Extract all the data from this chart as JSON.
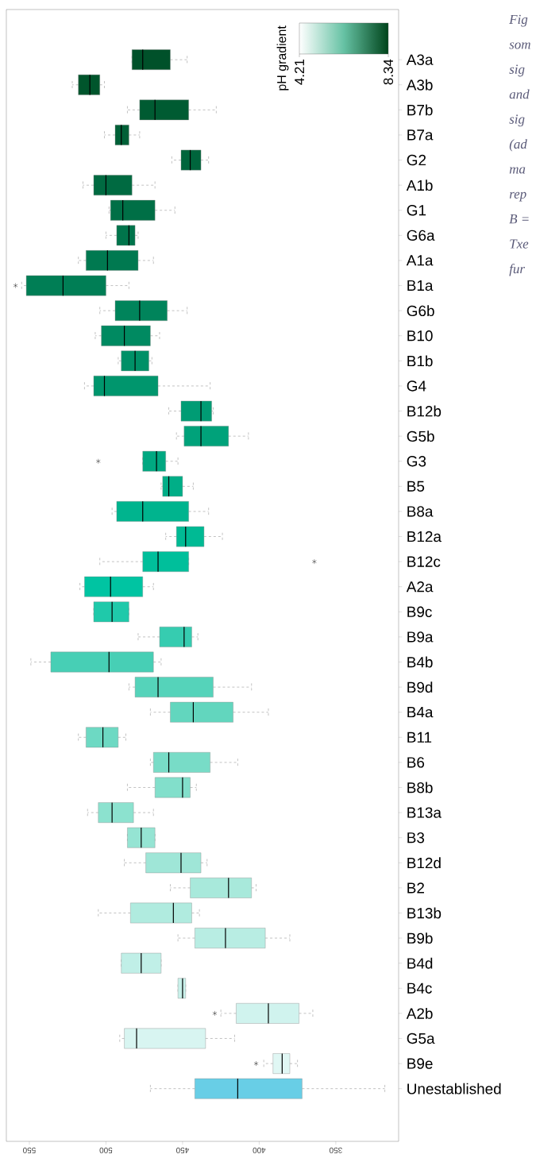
{
  "chart_data": {
    "type": "box",
    "orientation": "horizontal",
    "categories": [
      "A3a",
      "A3b",
      "B7b",
      "B7a",
      "G2",
      "A1b",
      "G1",
      "G6a",
      "A1a",
      "B1a",
      "G6b",
      "B10",
      "B1b",
      "G4",
      "B12b",
      "G5b",
      "G3",
      "B5",
      "B8a",
      "B12a",
      "B12c",
      "A2a",
      "B9c",
      "B9a",
      "B4b",
      "B9d",
      "B4a",
      "B11",
      "B6",
      "B8b",
      "B13a",
      "B3",
      "B12d",
      "B2",
      "B13b",
      "B9b",
      "B4d",
      "B4c",
      "A2b",
      "G5a",
      "B9e",
      "Unestablished"
    ],
    "boxes": [
      {
        "low": 447,
        "q1": 458,
        "median": 476,
        "q3": 483,
        "high": 483
      },
      {
        "low": 501,
        "q1": 504,
        "median": 510.5,
        "q3": 518,
        "high": 522
      },
      {
        "low": 428,
        "q1": 446,
        "median": 468,
        "q3": 478,
        "high": 486
      },
      {
        "low": 478,
        "q1": 485,
        "median": 490,
        "q3": 494,
        "high": 501
      },
      {
        "low": 433,
        "q1": 438,
        "median": 445,
        "q3": 451,
        "high": 457
      },
      {
        "low": 468,
        "q1": 483,
        "median": 500,
        "q3": 508,
        "high": 515
      },
      {
        "low": 455,
        "q1": 468,
        "median": 489,
        "q3": 497,
        "high": 498
      },
      {
        "low": 479,
        "q1": 481,
        "median": 485,
        "q3": 493,
        "high": 500
      },
      {
        "low": 469,
        "q1": 479,
        "median": 499,
        "q3": 513,
        "high": 518
      },
      {
        "low": 485,
        "q1": 500,
        "median": 528,
        "q3": 552,
        "high": 555,
        "outliers": [
          559
        ]
      },
      {
        "low": 447,
        "q1": 460,
        "median": 478,
        "q3": 494,
        "high": 504
      },
      {
        "low": 465,
        "q1": 471,
        "median": 488,
        "q3": 503,
        "high": 507
      },
      {
        "low": 470,
        "q1": 472,
        "median": 481,
        "q3": 490,
        "high": 492
      },
      {
        "low": 432,
        "q1": 466,
        "median": 501,
        "q3": 508,
        "high": 514
      },
      {
        "low": 430,
        "q1": 431,
        "median": 438,
        "q3": 451,
        "high": 459
      },
      {
        "low": 407,
        "q1": 420,
        "median": 438,
        "q3": 449,
        "high": 454
      },
      {
        "low": 453,
        "q1": 461,
        "median": 467,
        "q3": 476,
        "high": 476,
        "outliers": [
          505
        ]
      },
      {
        "low": 443,
        "q1": 450,
        "median": 459,
        "q3": 463,
        "high": 464
      },
      {
        "low": 433,
        "q1": 446,
        "median": 476,
        "q3": 493,
        "high": 496
      },
      {
        "low": 424,
        "q1": 436,
        "median": 448,
        "q3": 454,
        "high": 461
      },
      {
        "low": 446,
        "q1": 446,
        "median": 466,
        "q3": 476,
        "high": 504,
        "outliers": [
          364
        ]
      },
      {
        "low": 469,
        "q1": 476,
        "median": 497,
        "q3": 514,
        "high": 517
      },
      {
        "low": 485,
        "q1": 485,
        "median": 496,
        "q3": 508,
        "high": 508
      },
      {
        "low": 440,
        "q1": 444,
        "median": 449,
        "q3": 465,
        "high": 479
      },
      {
        "low": 464,
        "q1": 469,
        "median": 498,
        "q3": 536,
        "high": 549
      },
      {
        "low": 405,
        "q1": 430,
        "median": 466,
        "q3": 481,
        "high": 485
      },
      {
        "low": 394,
        "q1": 417,
        "median": 443,
        "q3": 458,
        "high": 471
      },
      {
        "low": 487,
        "q1": 492,
        "median": 502,
        "q3": 513,
        "high": 518
      },
      {
        "low": 414,
        "q1": 432,
        "median": 459,
        "q3": 469,
        "high": 471
      },
      {
        "low": 441,
        "q1": 445,
        "median": 450,
        "q3": 468,
        "high": 486
      },
      {
        "low": 469,
        "q1": 482,
        "median": 496,
        "q3": 505,
        "high": 512
      },
      {
        "low": 468,
        "q1": 468,
        "median": 477,
        "q3": 486,
        "high": 486
      },
      {
        "low": 434,
        "q1": 438,
        "median": 451,
        "q3": 474,
        "high": 488
      },
      {
        "low": 402,
        "q1": 405,
        "median": 420,
        "q3": 445,
        "high": 458
      },
      {
        "low": 439,
        "q1": 444,
        "median": 456,
        "q3": 484,
        "high": 505
      },
      {
        "low": 380,
        "q1": 396,
        "median": 422,
        "q3": 442,
        "high": 453
      },
      {
        "low": 464,
        "q1": 464,
        "median": 477,
        "q3": 490,
        "high": 490
      },
      {
        "low": 448,
        "q1": 448,
        "median": 450,
        "q3": 453,
        "high": 453
      },
      {
        "low": 365,
        "q1": 374,
        "median": 394,
        "q3": 415,
        "high": 425,
        "outliers": [
          429
        ]
      },
      {
        "low": 416,
        "q1": 435,
        "median": 480,
        "q3": 488,
        "high": 491
      },
      {
        "low": 375,
        "q1": 380,
        "median": 385,
        "q3": 391,
        "high": 397,
        "outliers": [
          402
        ]
      },
      {
        "low": 318,
        "q1": 372,
        "median": 414,
        "q3": 442,
        "high": 471
      }
    ],
    "colors": [
      "#00512a",
      "#00552c",
      "#005b32",
      "#006037",
      "#00653c",
      "#006a41",
      "#006f46",
      "#00744b",
      "#007950",
      "#007e55",
      "#00845b",
      "#008a61",
      "#009067",
      "#00966d",
      "#009c74",
      "#00a27a",
      "#00a881",
      "#00ae87",
      "#00b48e",
      "#00ba94",
      "#00bf9b",
      "#00c4a2",
      "#1fc9aa",
      "#36ccb0",
      "#47cfb5",
      "#55d3ba",
      "#62d6be",
      "#6dd9c3",
      "#78dcc7",
      "#82dfcb",
      "#8ce2cf",
      "#95e4d3",
      "#9fe6d7",
      "#a8e9db",
      "#b0ebdf",
      "#b8ede3",
      "#c0efe7",
      "#c8f1ea",
      "#d0f3ee",
      "#d8f5f1",
      "#e0f7f4",
      "#68cee6"
    ],
    "xlim": [
      565,
      309
    ],
    "xticks": [
      550,
      500,
      450,
      400,
      350
    ],
    "clabel": "pH gradient",
    "annotations": [
      "4.21",
      "8.34",
      "Fig",
      "som",
      "sig",
      "and",
      "sig",
      "(ad",
      "ma",
      "rep",
      "B =",
      "Txe",
      "fur"
    ]
  }
}
